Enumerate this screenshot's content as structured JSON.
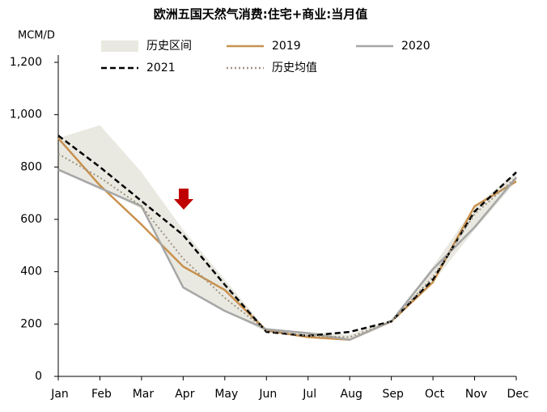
{
  "chart_data": {
    "type": "line",
    "title": "欧洲五国天然气消费:住宅+商业:当月值",
    "y_label": "MCM/D",
    "categories": [
      "Jan",
      "Feb",
      "Mar",
      "Apr",
      "May",
      "Jun",
      "Jul",
      "Aug",
      "Sep",
      "Oct",
      "Nov",
      "Dec"
    ],
    "band": {
      "name": "历史区间",
      "color": "#e9e9e1",
      "low": [
        790,
        720,
        640,
        340,
        250,
        170,
        150,
        140,
        205,
        360,
        560,
        745
      ],
      "high": [
        910,
        960,
        780,
        560,
        370,
        180,
        170,
        160,
        215,
        420,
        650,
        780
      ]
    },
    "series": [
      {
        "name": "2019",
        "color": "#c8914f",
        "dash": "solid",
        "values": [
          910,
          730,
          580,
          420,
          330,
          175,
          150,
          140,
          210,
          360,
          650,
          745
        ]
      },
      {
        "name": "2020",
        "color": "#a6a6a6",
        "dash": "solid",
        "values": [
          790,
          720,
          650,
          340,
          250,
          180,
          165,
          140,
          210,
          410,
          570,
          760
        ]
      },
      {
        "name": "2021",
        "color": "#000000",
        "dash": "dashed",
        "values": [
          920,
          800,
          670,
          540,
          350,
          170,
          155,
          170,
          210,
          370,
          630,
          780
        ]
      },
      {
        "name": "历史均值",
        "color": "#a09383",
        "dash": "dotted",
        "values": [
          850,
          760,
          650,
          450,
          300,
          175,
          155,
          150,
          210,
          380,
          620,
          760
        ]
      }
    ],
    "ylim": [
      0,
      1200
    ],
    "yticks": [
      0,
      200,
      400,
      600,
      800,
      {
        "value": 1000,
        "label": "1,000"
      },
      {
        "value": 1200,
        "label": "1,200"
      }
    ],
    "grid": false
  }
}
